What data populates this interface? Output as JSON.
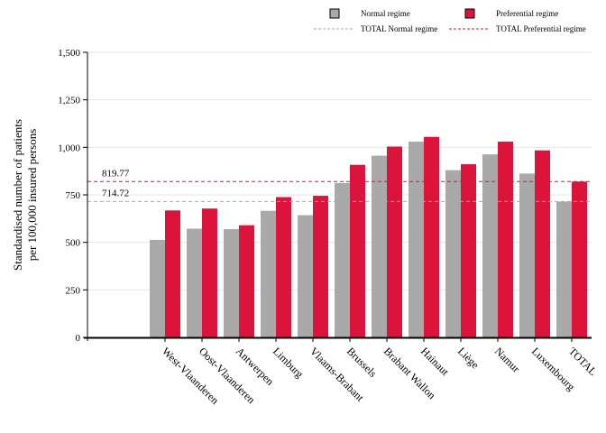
{
  "chart_data": {
    "type": "bar",
    "title": "",
    "xlabel": "",
    "ylabel_lines": [
      "Standardised number of patients",
      "per 100,000 insured persons"
    ],
    "ylim": [
      0,
      1500
    ],
    "yticks": [
      0,
      250,
      500,
      750,
      1000,
      1250,
      1500
    ],
    "ytick_labels": [
      "0",
      "250",
      "500",
      "750",
      "1,000",
      "1,250",
      "1,500"
    ],
    "grid": true,
    "legend_position": "top-right",
    "categories": [
      "West-Vlaanderen",
      "Oost-Vlaanderen",
      "Antwerpen",
      "Limburg",
      "Vlaams-Brabant",
      "Brussels",
      "Brabant Wallon",
      "Hainaut",
      "Liège",
      "Namur",
      "Luxembourg",
      "TOTAL"
    ],
    "series": [
      {
        "name": "Normal regime",
        "color": "#a9a9a9",
        "values": [
          513,
          572,
          570,
          666,
          643,
          812,
          956,
          1030,
          880,
          963,
          862,
          714.72
        ]
      },
      {
        "name": "Preferential regime",
        "color": "#dc143c",
        "values": [
          668,
          678,
          590,
          738,
          745,
          908,
          1004,
          1055,
          911,
          1030,
          984,
          819.77
        ]
      }
    ],
    "reference_lines": [
      {
        "name": "TOTAL Normal regime",
        "value": 714.72,
        "label": "714.72",
        "color": "#a9a9a9",
        "style": "dashed"
      },
      {
        "name": "TOTAL Preferential regime",
        "value": 819.77,
        "label": "819.77",
        "color": "#dc143c",
        "style": "dashed"
      }
    ]
  }
}
